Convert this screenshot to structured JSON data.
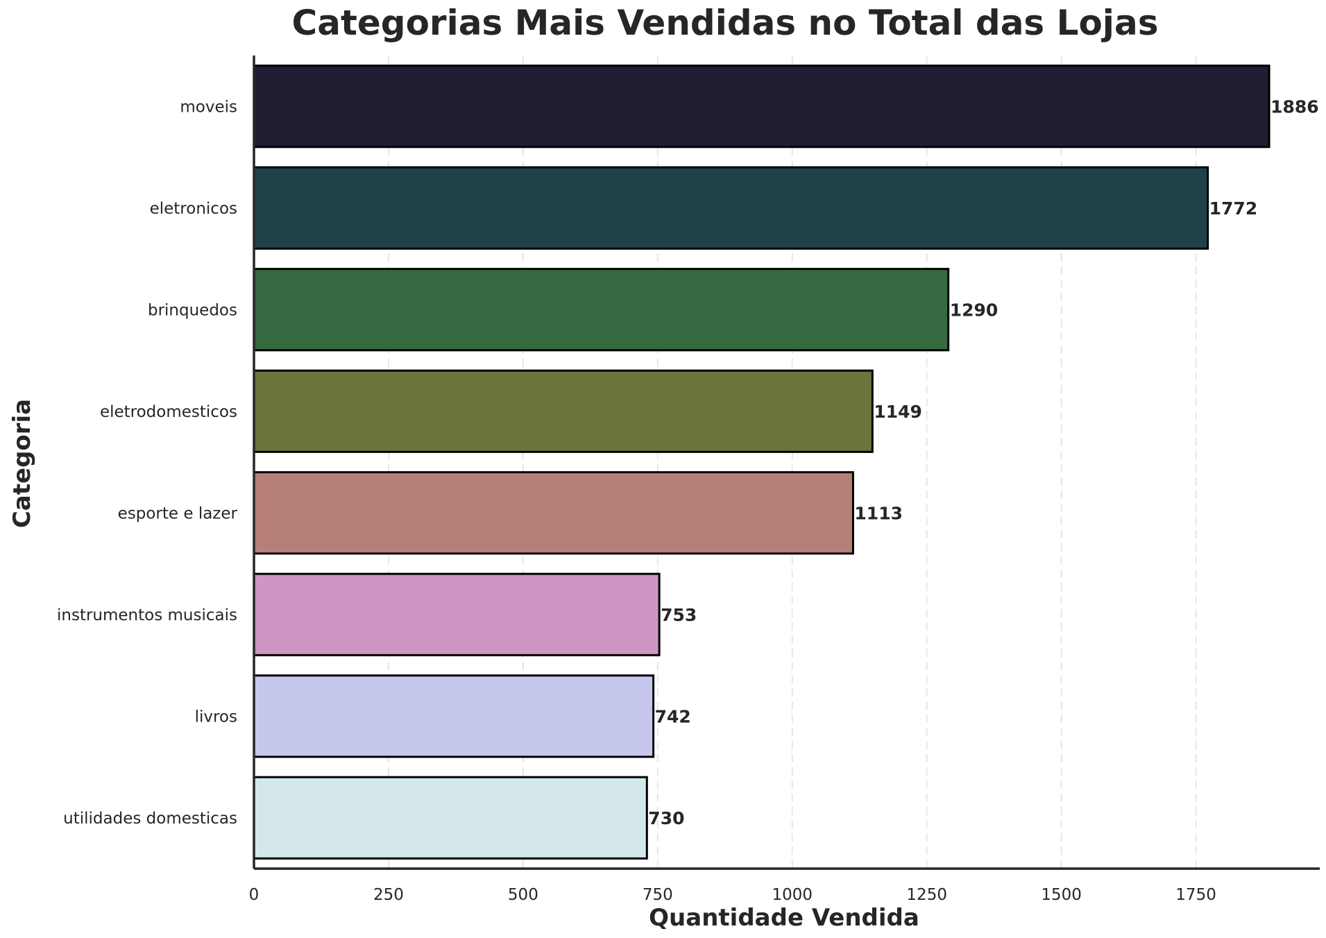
{
  "chart_data": {
    "type": "bar",
    "orientation": "horizontal",
    "title": "Categorias Mais Vendidas no Total das Lojas",
    "xlabel": "Quantidade Vendida",
    "ylabel": "Categoria",
    "xlim": [
      0,
      1980
    ],
    "xticks": [
      0,
      250,
      500,
      750,
      1000,
      1250,
      1500,
      1750
    ],
    "grid": "x-axis dashed",
    "legend": "none",
    "categories": [
      "moveis",
      "eletronicos",
      "brinquedos",
      "eletrodomesticos",
      "esporte e lazer",
      "instrumentos musicais",
      "livros",
      "utilidades domesticas"
    ],
    "values": [
      1886,
      1772,
      1290,
      1149,
      1113,
      753,
      742,
      730
    ],
    "colors": [
      "#201e33",
      "#1f4249",
      "#35693f",
      "#6d733d",
      "#b68078",
      "#cc95c2",
      "#c6c7ec",
      "#d4e8eb"
    ]
  }
}
